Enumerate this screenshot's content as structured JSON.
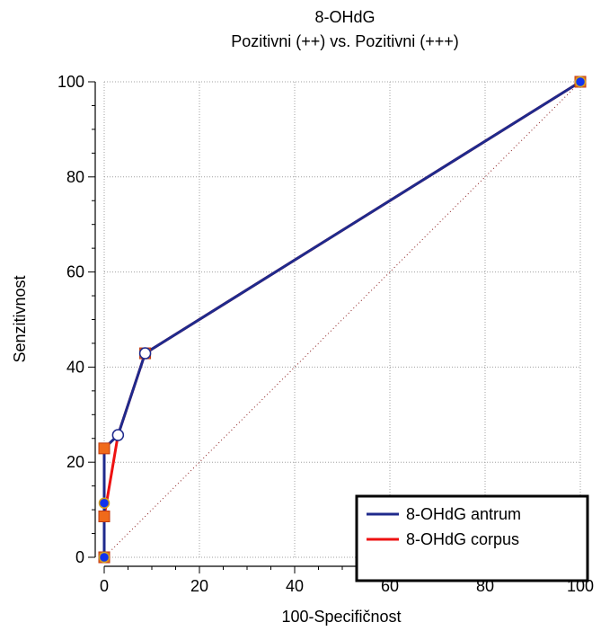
{
  "chart_data": {
    "type": "line",
    "title": "8-OHdG",
    "subtitle": "Pozitivni (++) vs. Pozitivni (+++)",
    "xlabel": "100-Specifičnost",
    "ylabel": "Senzitivnost",
    "xlim": [
      0,
      100
    ],
    "ylim": [
      0,
      100
    ],
    "xticks": [
      0,
      20,
      40,
      60,
      80,
      100
    ],
    "yticks": [
      0,
      20,
      40,
      60,
      80,
      100
    ],
    "grid": true,
    "legend_position": "bottom-right",
    "diagonal_reference": true,
    "series": [
      {
        "name": "8-OHdG antrum",
        "color": "#1f2a8c",
        "points": [
          {
            "x": 0,
            "y": 0,
            "marker": "circle-blue"
          },
          {
            "x": 0,
            "y": 11.4,
            "marker": "circle-blue"
          },
          {
            "x": 0,
            "y": 22.9,
            "marker": "square-orange"
          },
          {
            "x": 2.9,
            "y": 25.7,
            "marker": "circle-white"
          },
          {
            "x": 8.6,
            "y": 42.9,
            "marker": "circle-white"
          },
          {
            "x": 100,
            "y": 100,
            "marker": "circle-blue"
          }
        ]
      },
      {
        "name": "8-OHdG corpus",
        "color": "#ee1111",
        "points": [
          {
            "x": 0,
            "y": 0,
            "marker": "square-orange"
          },
          {
            "x": 0,
            "y": 8.6,
            "marker": "square-orange"
          },
          {
            "x": 2.9,
            "y": 25.7,
            "marker": "none"
          },
          {
            "x": 8.6,
            "y": 42.9,
            "marker": "square-orange"
          },
          {
            "x": 100,
            "y": 100,
            "marker": "square-orange"
          }
        ]
      }
    ]
  },
  "colors": {
    "grid": "#a0a0a0",
    "diagonal": "#8b1a1a",
    "marker_blue": "#1133ee",
    "marker_orange": "#f06a1a",
    "marker_edge": "#d4a020"
  }
}
